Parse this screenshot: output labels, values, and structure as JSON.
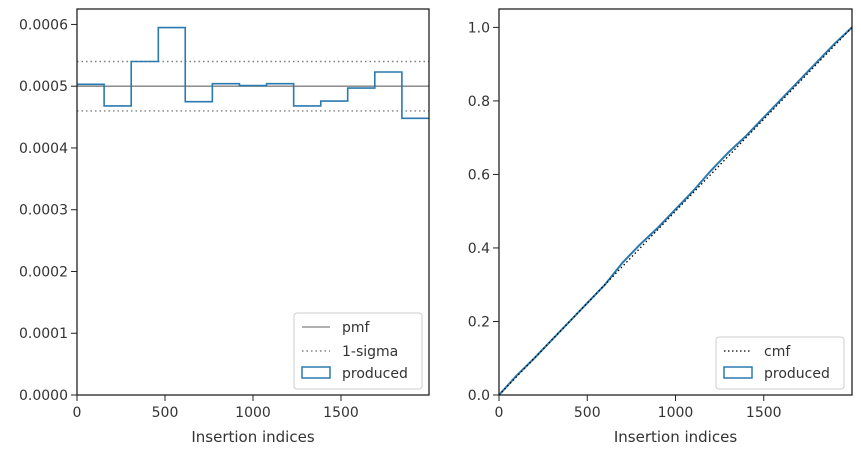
{
  "colors": {
    "produced": "#2a7ab0",
    "pmf": "#808080",
    "sigma": "#808080",
    "cmf": "#000000",
    "frame": "#222222"
  },
  "chart_data": [
    {
      "type": "line",
      "xlabel": "Insertion indices",
      "ylabel": "",
      "xlim": [
        0,
        2000
      ],
      "ylim": [
        0,
        0.000625
      ],
      "x_ticks": [
        0,
        500,
        1000,
        1500
      ],
      "x_tick_labels": [
        "0",
        "500",
        "1000",
        "1500"
      ],
      "y_ticks": [
        0,
        0.0001,
        0.0002,
        0.0003,
        0.0004,
        0.0005,
        0.0006
      ],
      "y_tick_labels": [
        "0.0000",
        "0.0001",
        "0.0002",
        "0.0003",
        "0.0004",
        "0.0005",
        "0.0006"
      ],
      "legend_position": "lower right",
      "legend": [
        "pmf",
        "1-sigma",
        "produced"
      ],
      "pmf": 0.0005,
      "sigma_lower": 0.00046,
      "sigma_upper": 0.00054,
      "produced_hist": {
        "bin_edges": [
          0,
          154,
          308,
          462,
          615,
          769,
          923,
          1077,
          1231,
          1385,
          1538,
          1692,
          1846,
          2000
        ],
        "values": [
          0.000503,
          0.000468,
          0.00054,
          0.000595,
          0.000475,
          0.000504,
          0.000501,
          0.000504,
          0.000468,
          0.000476,
          0.000497,
          0.000523,
          0.000448
        ]
      }
    },
    {
      "type": "line",
      "xlabel": "Insertion indices",
      "ylabel": "",
      "xlim": [
        0,
        2000
      ],
      "ylim": [
        0,
        1.05
      ],
      "x_ticks": [
        0,
        500,
        1000,
        1500
      ],
      "x_tick_labels": [
        "0",
        "500",
        "1000",
        "1500"
      ],
      "y_ticks": [
        0,
        0.2,
        0.4,
        0.6,
        0.8,
        1.0
      ],
      "y_tick_labels": [
        "0.0",
        "0.2",
        "0.4",
        "0.6",
        "0.8",
        "1.0"
      ],
      "legend_position": "lower right",
      "legend": [
        "cmf",
        "produced"
      ],
      "cmf": {
        "x": [
          0,
          2000
        ],
        "y": [
          0,
          1.0
        ]
      },
      "produced_cdf": {
        "x": [
          0,
          100,
          200,
          300,
          400,
          500,
          600,
          650,
          700,
          800,
          900,
          1000,
          1100,
          1200,
          1300,
          1400,
          1500,
          1600,
          1700,
          1800,
          1900,
          2000
        ],
        "y": [
          0,
          0.053,
          0.1,
          0.15,
          0.2,
          0.25,
          0.3,
          0.33,
          0.36,
          0.41,
          0.455,
          0.505,
          0.555,
          0.61,
          0.66,
          0.705,
          0.755,
          0.805,
          0.855,
          0.905,
          0.955,
          1.0
        ]
      }
    }
  ]
}
